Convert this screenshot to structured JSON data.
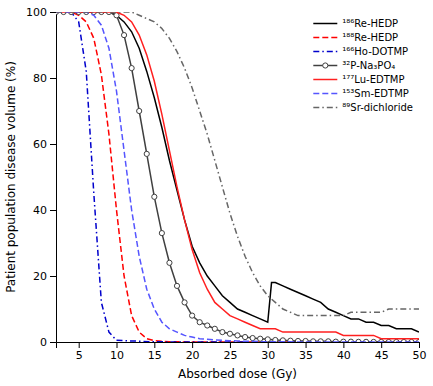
{
  "chart_data": {
    "type": "line",
    "xlabel": "Absorbed dose (Gy)",
    "ylabel": "Patient population disease volume (%)",
    "xlim": [
      2,
      50
    ],
    "ylim": [
      0,
      100
    ],
    "xticks": [
      5,
      10,
      15,
      20,
      25,
      30,
      35,
      40,
      45,
      50
    ],
    "yticks": [
      0,
      20,
      40,
      60,
      80,
      100
    ],
    "grid": false,
    "legend": "upper right",
    "series": [
      {
        "name": "¹⁸⁶Re-HEDP",
        "color": "#000000",
        "line_style": "solid",
        "x": [
          2,
          3,
          4,
          5,
          6,
          7,
          8,
          9,
          10,
          11,
          12,
          13,
          14,
          15,
          16,
          17,
          18,
          19,
          20,
          21,
          22,
          23,
          24,
          25,
          26,
          27,
          28,
          29,
          30,
          30.5,
          31,
          32,
          33,
          34,
          35,
          36,
          37,
          38,
          39,
          40,
          41,
          42,
          43,
          44,
          45,
          46,
          47,
          48,
          49,
          50
        ],
        "values": [
          100,
          100,
          100,
          100,
          100,
          100,
          100,
          100,
          99,
          97,
          94,
          89,
          82,
          74,
          65,
          55,
          46,
          37,
          29,
          24,
          20,
          17,
          14,
          12,
          10,
          9,
          8,
          7,
          6,
          18,
          18,
          17,
          16,
          15,
          14,
          13,
          12,
          10,
          9,
          8,
          7,
          7,
          6,
          6,
          5,
          5,
          4,
          4,
          4,
          3
        ]
      },
      {
        "name": "¹⁸⁸Re-HEDP",
        "color": "#ff0000",
        "line_style": "dashed",
        "x": [
          2,
          3,
          4,
          5,
          6,
          7,
          8,
          9,
          10,
          11,
          12,
          13,
          14,
          15,
          16,
          17,
          18,
          19,
          20,
          21,
          22,
          23,
          24,
          25,
          26,
          27,
          28,
          29,
          30,
          35,
          40,
          45,
          50
        ],
        "values": [
          100,
          100,
          100,
          99,
          97,
          92,
          81,
          63,
          40,
          20,
          8,
          3,
          1,
          0.4,
          0.2,
          0.1,
          0.05,
          0.02,
          0.01,
          0.01,
          0.01,
          0.01,
          0.01,
          0.01,
          0.01,
          0.01,
          0.01,
          0.01,
          0.01,
          0.01,
          0.01,
          0.01,
          0.01
        ]
      },
      {
        "name": "¹⁶⁶Ho-DOTMP",
        "color": "#0000cc",
        "line_style": "dashdot",
        "x": [
          2,
          3,
          4,
          5,
          6,
          7,
          8,
          9,
          10,
          15,
          20,
          25,
          30,
          35,
          40,
          45,
          50
        ],
        "values": [
          100,
          100,
          100,
          97,
          82,
          45,
          12,
          3,
          0.5,
          0.05,
          0.01,
          0.01,
          0.01,
          0.01,
          0.01,
          0.01,
          0.01
        ]
      },
      {
        "name": "³²P-Na₃PO₄",
        "color": "#404040",
        "line_style": "solid",
        "marker": "circle",
        "x": [
          2,
          3,
          4,
          5,
          6,
          7,
          8,
          9,
          10,
          11,
          12,
          13,
          14,
          15,
          16,
          17,
          18,
          19,
          20,
          21,
          22,
          23,
          24,
          25,
          26,
          27,
          28,
          29,
          30,
          31,
          32,
          33,
          34,
          35,
          36,
          37,
          38,
          39,
          40,
          41,
          42,
          43,
          44,
          45,
          46,
          47,
          48,
          49,
          50
        ],
        "values": [
          100,
          100,
          100,
          100,
          100,
          100,
          100,
          100,
          99,
          93,
          83,
          70,
          57,
          44,
          33,
          24,
          17,
          12,
          8,
          6,
          5,
          4,
          3,
          2.5,
          2,
          1.5,
          1.2,
          1,
          0.8,
          0.6,
          0.5,
          0.4,
          0.3,
          0.3,
          0.2,
          0.2,
          0.2,
          0.1,
          0.1,
          0.1,
          0.05,
          0.05,
          0.02,
          0.02,
          0.01,
          0.01,
          0.01,
          0.01,
          0.01
        ]
      },
      {
        "name": "¹⁷⁷Lu-EDTMP",
        "color": "#ff2020",
        "line_style": "solid",
        "x": [
          2,
          3,
          4,
          5,
          6,
          7,
          8,
          9,
          10,
          11,
          12,
          13,
          14,
          15,
          16,
          17,
          18,
          19,
          20,
          21,
          22,
          23,
          24,
          25,
          26,
          27,
          28,
          29,
          30,
          31,
          32,
          33,
          34,
          35,
          36,
          37,
          38,
          39,
          40,
          41,
          42,
          43,
          44,
          45,
          46,
          47,
          48,
          49,
          50
        ],
        "values": [
          100,
          100,
          100,
          100,
          100,
          100,
          100,
          100,
          100,
          99,
          97,
          93,
          87,
          79,
          69,
          58,
          47,
          37,
          28,
          21,
          16,
          12,
          10,
          8,
          7,
          6,
          5,
          4,
          4,
          4,
          3,
          3,
          3,
          3,
          3,
          3,
          3,
          3,
          2,
          2,
          2,
          2,
          2,
          1,
          1,
          1,
          1,
          1,
          1
        ]
      },
      {
        "name": "¹⁵³Sm-EDTMP",
        "color": "#5555ff",
        "line_style": "dashed",
        "x": [
          2,
          3,
          4,
          5,
          6,
          7,
          8,
          9,
          10,
          11,
          12,
          13,
          14,
          15,
          16,
          17,
          18,
          19,
          20,
          21,
          22,
          23,
          24,
          25,
          26,
          27,
          28,
          29,
          30,
          31,
          32,
          33,
          34,
          35,
          36,
          37,
          38,
          39,
          40,
          41,
          42,
          43,
          44,
          45,
          46,
          47,
          48,
          49,
          50
        ],
        "values": [
          100,
          100,
          100,
          100,
          100,
          99,
          96,
          89,
          76,
          58,
          40,
          26,
          16,
          10,
          6,
          4,
          3,
          2,
          1.5,
          1,
          0.8,
          0.6,
          0.5,
          0.4,
          0.3,
          0.2,
          0.2,
          0.1,
          0.1,
          0.1,
          0.05,
          0.05,
          0.02,
          0.02,
          0.01,
          0.01,
          0.01,
          0.01,
          0.01,
          0.01,
          0.01,
          0.01,
          0.01,
          0.01,
          0.01,
          0.01,
          0.01,
          0.01,
          0.01
        ]
      },
      {
        "name": "⁸⁹Sr-dichloride",
        "color": "#666666",
        "line_style": "dashdot",
        "x": [
          2,
          3,
          4,
          5,
          6,
          7,
          8,
          9,
          10,
          11,
          12,
          13,
          14,
          15,
          16,
          17,
          18,
          19,
          20,
          21,
          22,
          23,
          24,
          25,
          26,
          27,
          28,
          29,
          30,
          31,
          32,
          33,
          34,
          35,
          36,
          37,
          38,
          39,
          40,
          41,
          42,
          43,
          44,
          45,
          46,
          47,
          48,
          49,
          50
        ],
        "values": [
          100,
          100,
          100,
          100,
          100,
          100,
          100,
          100,
          100,
          100,
          100,
          99,
          98,
          97,
          95,
          92,
          88,
          83,
          77,
          70,
          63,
          55,
          47,
          39,
          32,
          26,
          21,
          17,
          14,
          12,
          10,
          9,
          8,
          8,
          8,
          8,
          8,
          8,
          8,
          9,
          9,
          9,
          9,
          9,
          10,
          10,
          10,
          10,
          10
        ]
      }
    ]
  }
}
